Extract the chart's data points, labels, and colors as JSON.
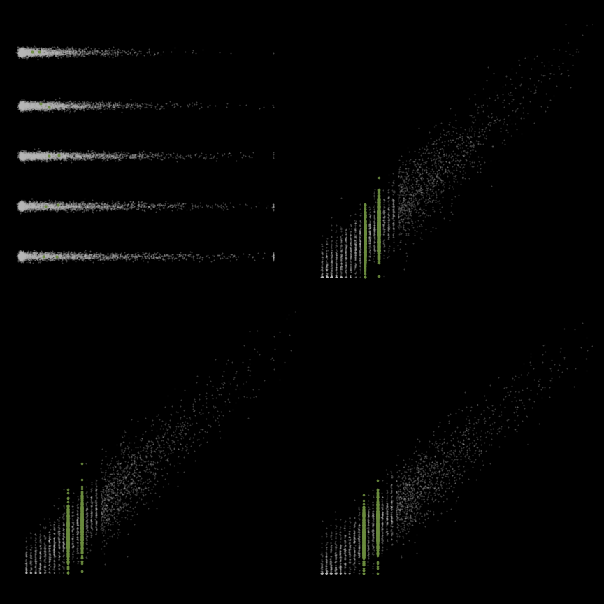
{
  "background_color": "#000000",
  "gray_color": "#b8b8b8",
  "green_color": "#6b8c3e",
  "n_points": 3000,
  "seed": 42,
  "alpha_gray": 0.35,
  "alpha_green": 0.9,
  "point_size_gray": 2,
  "point_size_green": 7,
  "strip_jitter": 0.006,
  "scatter_alpha": 0.3,
  "scatter_size": 2
}
